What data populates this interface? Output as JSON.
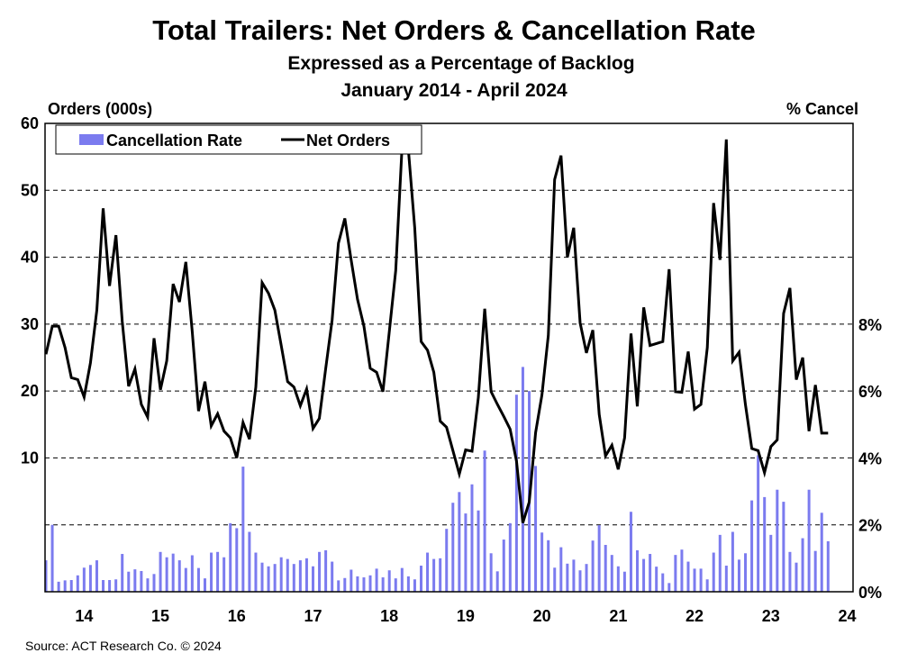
{
  "chart_data": {
    "type": "bar+line",
    "title": "Total Trailers: Net Orders & Cancellation Rate",
    "subtitle": "Expressed as a Percentage of Backlog",
    "period": "January 2014 - April 2024",
    "ylabel_left": "Orders (000s)",
    "ylabel_right": "% Cancel",
    "ylim_left": [
      -10,
      60
    ],
    "ylim_right": [
      0,
      14
    ],
    "left_ticks": [
      10,
      20,
      30,
      40,
      50,
      60
    ],
    "right_ticks": [
      "0%",
      "2%",
      "4%",
      "6%",
      "8%"
    ],
    "right_tick_values": [
      0,
      2,
      4,
      6,
      8
    ],
    "x_tick_labels": [
      "14",
      "15",
      "16",
      "17",
      "18",
      "19",
      "20",
      "21",
      "22",
      "23",
      "24"
    ],
    "x_start": "2014-01",
    "x_end": "2024-04",
    "grid": "horizontal dashed",
    "legend_placement": "top-left",
    "source": "Source: ACT Research Co. © 2024",
    "colors": {
      "bars": "#7b7bef",
      "line": "#000000"
    },
    "series": [
      {
        "name": "Cancellation Rate",
        "type": "bar",
        "axis": "right",
        "unit": "%",
        "values": [
          0.94,
          2.0,
          0.3,
          0.34,
          0.35,
          0.49,
          0.72,
          0.8,
          0.94,
          0.35,
          0.35,
          0.37,
          1.13,
          0.6,
          0.67,
          0.62,
          0.4,
          0.53,
          1.19,
          1.03,
          1.14,
          0.94,
          0.71,
          1.09,
          0.71,
          0.4,
          1.17,
          1.19,
          1.03,
          2.05,
          1.9,
          3.74,
          1.79,
          1.17,
          0.87,
          0.76,
          0.83,
          1.03,
          0.98,
          0.83,
          0.94,
          1.0,
          0.76,
          1.19,
          1.24,
          0.9,
          0.34,
          0.41,
          0.66,
          0.46,
          0.43,
          0.49,
          0.69,
          0.43,
          0.64,
          0.4,
          0.71,
          0.46,
          0.37,
          0.78,
          1.17,
          0.98,
          1.0,
          1.88,
          2.66,
          2.98,
          2.34,
          3.21,
          2.43,
          4.22,
          1.15,
          0.61,
          1.56,
          2.05,
          5.89,
          6.72,
          6.0,
          3.76,
          1.77,
          1.54,
          0.72,
          1.33,
          0.84,
          0.96,
          0.64,
          0.83,
          1.53,
          1.99,
          1.4,
          1.1,
          0.76,
          0.6,
          2.39,
          1.24,
          0.98,
          1.13,
          0.75,
          0.55,
          0.26,
          1.1,
          1.26,
          0.9,
          0.69,
          0.69,
          0.37,
          1.17,
          1.7,
          0.78,
          1.79,
          0.96,
          1.15,
          2.73,
          4.08,
          2.83,
          1.7,
          3.05,
          2.69,
          1.19,
          0.87,
          1.6,
          3.05,
          1.22,
          2.36,
          1.51
        ]
      },
      {
        "name": "Net Orders",
        "type": "line",
        "axis": "left",
        "unit": "000s",
        "values": [
          25.5,
          29.7,
          29.7,
          26.5,
          22.0,
          21.7,
          19.1,
          24.2,
          32.1,
          47.3,
          35.7,
          43.3,
          30.4,
          20.7,
          23.3,
          18.0,
          16.1,
          27.9,
          20.2,
          24.5,
          36.0,
          33.3,
          39.3,
          28.9,
          17.0,
          21.4,
          14.8,
          16.6,
          14.0,
          13.0,
          10.0,
          15.3,
          12.8,
          20.6,
          36.2,
          34.6,
          32.1,
          26.8,
          21.4,
          20.6,
          17.8,
          20.3,
          14.4,
          15.9,
          23.4,
          30.6,
          42.1,
          45.8,
          39.6,
          33.7,
          29.7,
          23.4,
          22.8,
          19.9,
          28.9,
          38.0,
          56.4,
          56.0,
          44.4,
          27.4,
          26.1,
          22.8,
          15.5,
          14.6,
          11.1,
          7.6,
          11.2,
          11.0,
          19.0,
          32.3,
          19.9,
          18.0,
          16.2,
          14.3,
          9.5,
          0.3,
          3.4,
          13.8,
          19.4,
          28.3,
          51.6,
          55.2,
          40.0,
          44.4,
          30.2,
          25.7,
          29.1,
          16.5,
          10.3,
          11.9,
          8.3,
          13.0,
          28.6,
          17.7,
          32.5,
          26.8,
          27.1,
          27.4,
          38.2,
          19.9,
          19.8,
          25.9,
          17.3,
          18.0,
          26.5,
          48.1,
          39.6,
          57.6,
          24.5,
          25.8,
          18.0,
          11.4,
          11.1,
          7.8,
          11.7,
          12.7,
          31.6,
          35.4,
          21.7,
          25.0,
          14.0,
          20.9,
          13.7,
          13.7
        ]
      }
    ]
  }
}
